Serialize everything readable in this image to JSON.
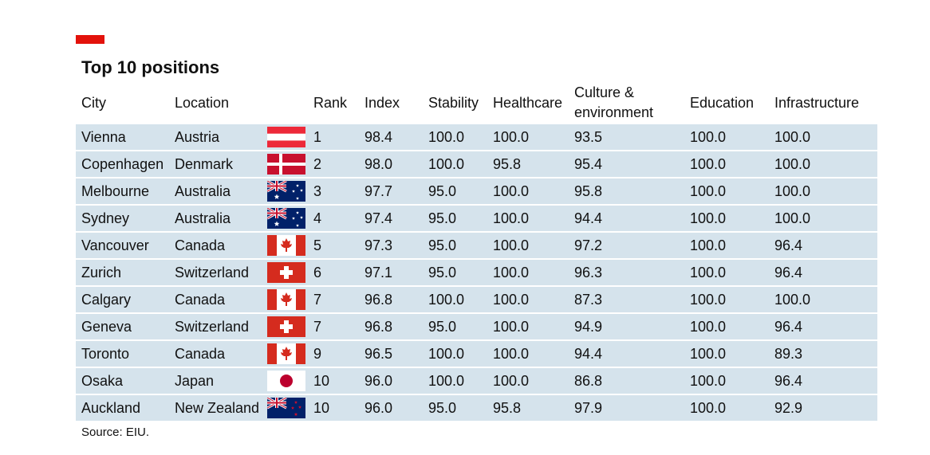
{
  "header": {
    "title": "Top 10 positions"
  },
  "table": {
    "columns": [
      "City",
      "Location",
      "Rank",
      "Index",
      "Stability",
      "Healthcare",
      "Culture & environment",
      "Education",
      "Infrastructure"
    ],
    "rows": [
      [
        "Vienna",
        "Austria",
        "1",
        "98.4",
        "100.0",
        "100.0",
        "93.5",
        "100.0",
        "100.0"
      ],
      [
        "Copenhagen",
        "Denmark",
        "2",
        "98.0",
        "100.0",
        "95.8",
        "95.4",
        "100.0",
        "100.0"
      ],
      [
        "Melbourne",
        "Australia",
        "3",
        "97.7",
        "95.0",
        "100.0",
        "95.8",
        "100.0",
        "100.0"
      ],
      [
        "Sydney",
        "Australia",
        "4",
        "97.4",
        "95.0",
        "100.0",
        "94.4",
        "100.0",
        "100.0"
      ],
      [
        "Vancouver",
        "Canada",
        "5",
        "97.3",
        "95.0",
        "100.0",
        "97.2",
        "100.0",
        "96.4"
      ],
      [
        "Zurich",
        "Switzerland",
        "6",
        "97.1",
        "95.0",
        "100.0",
        "96.3",
        "100.0",
        "96.4"
      ],
      [
        "Calgary",
        "Canada",
        "7",
        "96.8",
        "100.0",
        "100.0",
        "87.3",
        "100.0",
        "100.0"
      ],
      [
        "Geneva",
        "Switzerland",
        "7",
        "96.8",
        "95.0",
        "100.0",
        "94.9",
        "100.0",
        "96.4"
      ],
      [
        "Toronto",
        "Canada",
        "9",
        "96.5",
        "100.0",
        "100.0",
        "94.4",
        "100.0",
        "89.3"
      ],
      [
        "Osaka",
        "Japan",
        "10",
        "96.0",
        "100.0",
        "100.0",
        "86.8",
        "100.0",
        "96.4"
      ],
      [
        "Auckland",
        "New Zealand",
        "10",
        "96.0",
        "95.0",
        "95.8",
        "97.9",
        "100.0",
        "92.9"
      ]
    ]
  },
  "footer": {
    "source": "Source: EIU."
  }
}
